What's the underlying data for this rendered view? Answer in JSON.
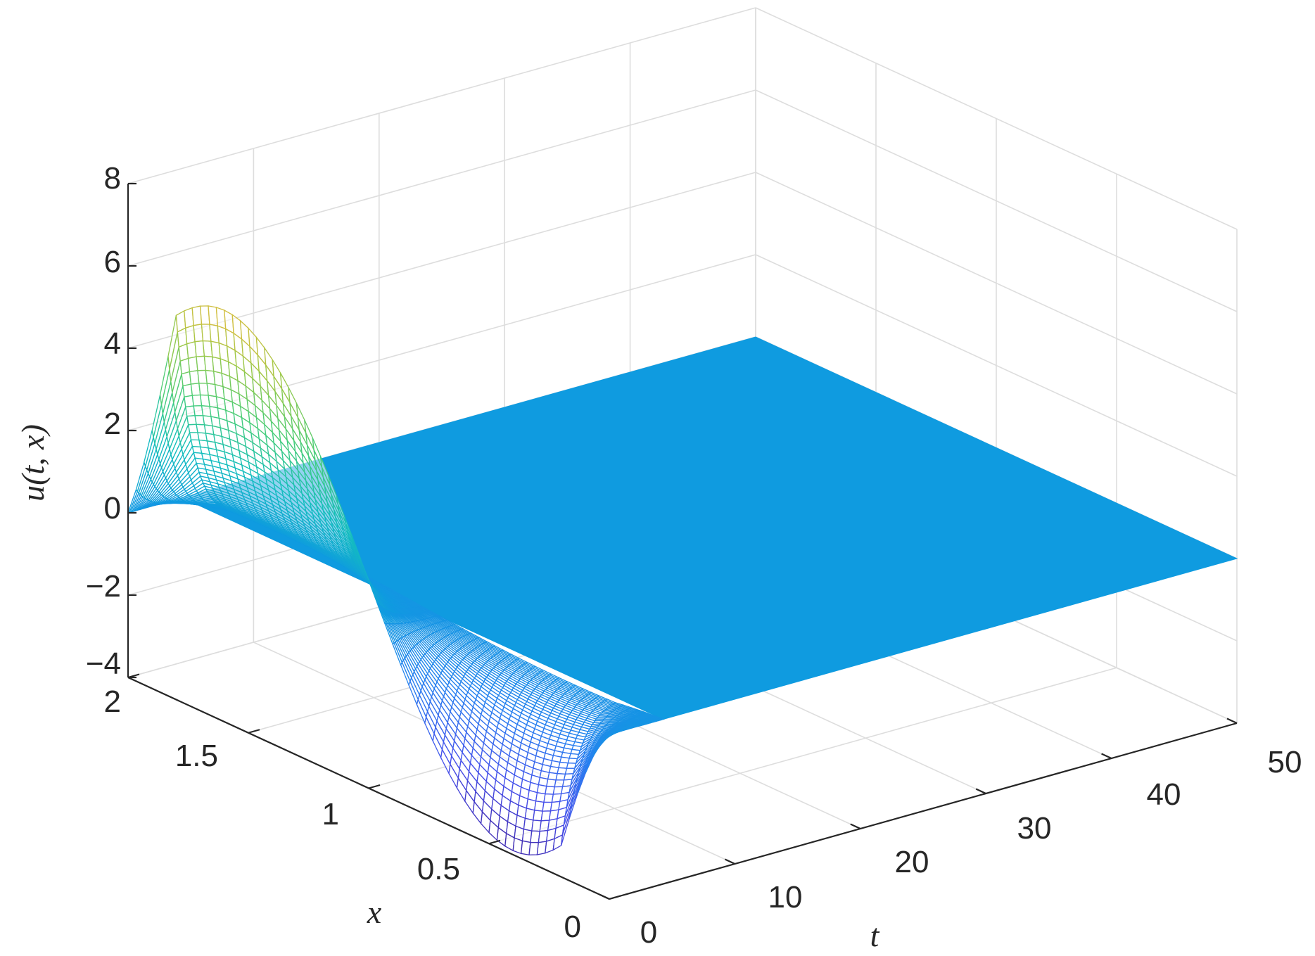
{
  "chart_data": {
    "type": "surface",
    "title": "",
    "xlabel": "t",
    "ylabel": "x",
    "zlabel": "u(t, x)",
    "t_range": [
      0,
      50
    ],
    "x_range": [
      0,
      2
    ],
    "z_range": [
      -4,
      8
    ],
    "t_ticks": [
      "0",
      "10",
      "20",
      "30",
      "40",
      "50"
    ],
    "x_ticks": [
      "0",
      "0.5",
      "1",
      "1.5",
      "2"
    ],
    "z_ticks": [
      "−4",
      "−2",
      "0",
      "2",
      "4",
      "6",
      "8"
    ],
    "grid": true,
    "box": false,
    "colormap": "parula",
    "surface": {
      "active_t_max": 4.3,
      "max_value": 6.0,
      "max_at": {
        "t": 0.3,
        "x": 1.6
      },
      "min_value": -3.9,
      "min_at": {
        "t": 0.3,
        "x": 0.4
      },
      "steady_value": 0
    },
    "colors": {
      "flat_plane": "#0f9be0",
      "peak": "#f9fb0e",
      "trough": "#4a2fd4",
      "grid": "#dddddd",
      "axis": "#262626"
    }
  }
}
